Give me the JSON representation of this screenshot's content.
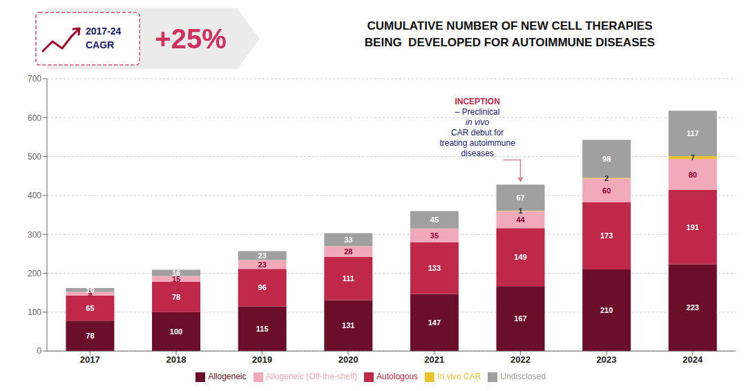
{
  "chart_data": {
    "type": "bar",
    "stacked": true,
    "title": "CUMULATIVE NUMBER OF NEW CELL THERAPIES",
    "subtitle": "BEING  DEVELOPED FOR AUTOIMMUNE DISEASES",
    "categories": [
      "2017",
      "2018",
      "2019",
      "2020",
      "2021",
      "2022",
      "2023",
      "2024"
    ],
    "series": [
      {
        "name": "Allogeneic",
        "color": "#6B0E2A",
        "values": [
          78,
          100,
          115,
          131,
          147,
          167,
          210,
          223
        ]
      },
      {
        "name": "Autologous",
        "color": "#C0284A",
        "values": [
          65,
          78,
          96,
          111,
          133,
          149,
          173,
          191
        ]
      },
      {
        "name": "Allogeneic (Off-the-shelf)",
        "color": "#F2AABB",
        "values": [
          9,
          15,
          23,
          28,
          35,
          44,
          60,
          80
        ]
      },
      {
        "name": "In vivo CAR",
        "color": "#E8C430",
        "values": [
          0,
          0,
          0,
          0,
          0,
          1,
          2,
          7
        ]
      },
      {
        "name": "Undisclosed",
        "color": "#A0A0A0",
        "values": [
          10,
          16,
          23,
          33,
          45,
          67,
          98,
          117
        ]
      }
    ],
    "ylim": [
      0,
      700
    ],
    "yticks": [
      0,
      100,
      200,
      300,
      400,
      500,
      600,
      700
    ],
    "grid": true,
    "legend": "bottom",
    "data_labels": true,
    "annotations": [
      "2017-24",
      "CAGR",
      "+25%",
      "INCEPTION",
      "– Preclinical",
      "in vivo",
      "CAR debut for",
      "treating autoimmune",
      "diseases"
    ]
  }
}
